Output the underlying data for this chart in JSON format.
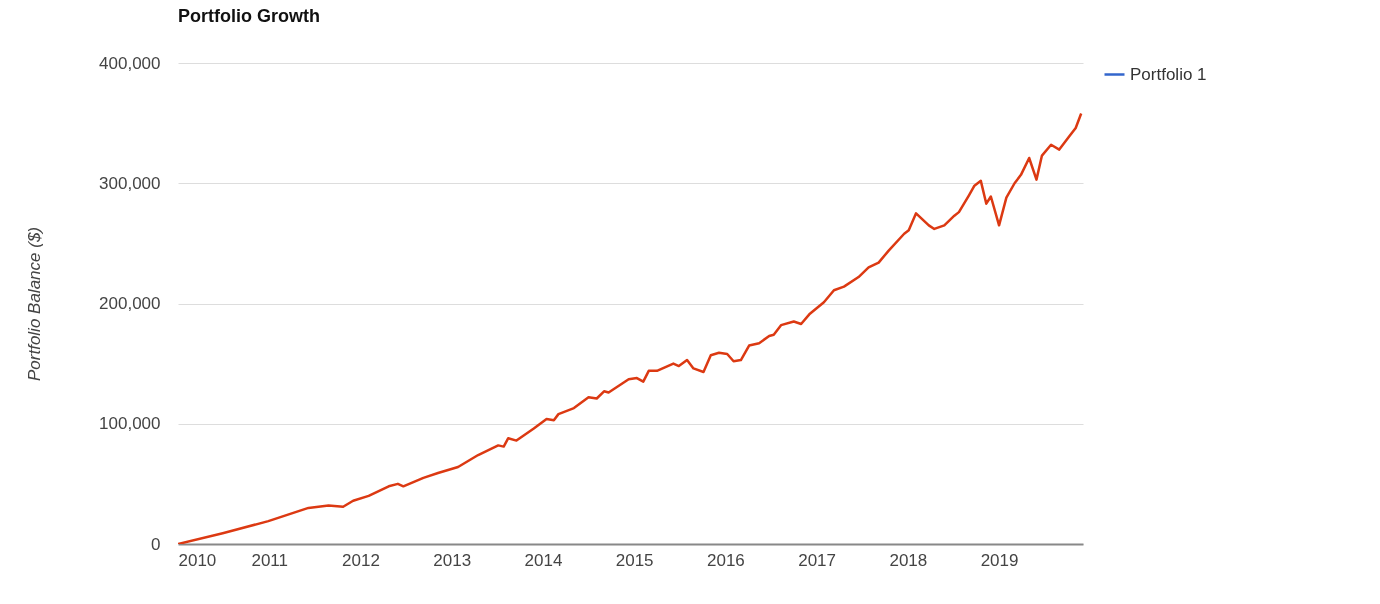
{
  "chart_data": {
    "type": "line",
    "title": "Portfolio Growth",
    "ylabel": "Portfolio Balance ($)",
    "xlim": [
      2010,
      2019.92
    ],
    "xticks": [
      2010,
      2011,
      2012,
      2013,
      2014,
      2015,
      2016,
      2017,
      2018,
      2019
    ],
    "ylim": [
      0,
      400000
    ],
    "yticks": [
      0,
      {
        "value": 100000,
        "label": "100,000"
      },
      {
        "value": 200000,
        "label": "200,000"
      },
      {
        "value": 300000,
        "label": "300,000"
      },
      {
        "value": 400000,
        "label": "400,000"
      }
    ],
    "grid": "y",
    "legend": "top right",
    "x": [
      2010.0,
      2010.49,
      2010.99,
      2011.43,
      2011.65,
      2011.81,
      2011.92,
      2012.09,
      2012.31,
      2012.41,
      2012.47,
      2012.69,
      2012.85,
      2013.07,
      2013.29,
      2013.51,
      2013.57,
      2013.62,
      2013.71,
      2013.9,
      2014.04,
      2014.12,
      2014.17,
      2014.34,
      2014.5,
      2014.59,
      2014.67,
      2014.72,
      2014.94,
      2015.03,
      2015.1,
      2015.16,
      2015.25,
      2015.43,
      2015.49,
      2015.58,
      2015.65,
      2015.76,
      2015.84,
      2015.93,
      2016.02,
      2016.09,
      2016.17,
      2016.26,
      2016.37,
      2016.48,
      2016.53,
      2016.61,
      2016.75,
      2016.83,
      2016.92,
      2017.08,
      2017.19,
      2017.3,
      2017.46,
      2017.57,
      2017.68,
      2017.79,
      2017.96,
      2018.01,
      2018.09,
      2018.23,
      2018.29,
      2018.4,
      2018.51,
      2018.56,
      2018.67,
      2018.73,
      2018.8,
      2018.86,
      2018.91,
      2019.0,
      2019.08,
      2019.17,
      2019.24,
      2019.33,
      2019.41,
      2019.47,
      2019.57,
      2019.66,
      2019.77,
      2019.84,
      2019.9
    ],
    "series": [
      {
        "name": "Portfolio 1",
        "color": "#3366cc",
        "values": [
          null,
          null,
          null,
          null,
          null,
          null,
          null,
          null,
          null,
          null,
          null,
          null,
          null,
          null,
          null,
          null,
          null,
          null,
          null,
          null,
          null,
          null,
          null,
          null,
          null,
          null,
          null,
          null,
          null,
          null,
          null,
          null,
          null,
          null,
          null,
          null,
          null,
          null,
          null,
          null,
          null,
          null,
          null,
          null,
          null,
          null,
          null,
          null,
          null,
          null,
          null,
          null,
          null,
          null,
          null,
          null,
          null,
          null,
          null,
          null,
          null,
          null,
          null,
          null,
          null,
          null,
          null,
          null,
          null,
          null,
          null,
          null,
          null,
          null,
          null,
          null,
          null,
          null,
          null,
          null,
          null,
          null,
          null
        ]
      },
      {
        "color": "#dc3912",
        "values": [
          0,
          9000,
          19000,
          30000,
          32000,
          31000,
          36000,
          40000,
          48000,
          50000,
          48000,
          55000,
          59000,
          64000,
          74000,
          82000,
          81000,
          88000,
          86000,
          96000,
          104000,
          103000,
          108000,
          113000,
          122000,
          121000,
          127000,
          126000,
          137000,
          138000,
          135000,
          144000,
          144000,
          150000,
          148000,
          153000,
          146000,
          143000,
          157000,
          159000,
          158000,
          152000,
          153000,
          165000,
          167000,
          173000,
          174000,
          182000,
          185000,
          183000,
          191000,
          201000,
          211000,
          214000,
          222000,
          230000,
          234000,
          244000,
          258000,
          261000,
          275000,
          265000,
          262000,
          265000,
          273000,
          276000,
          290000,
          298000,
          302000,
          283000,
          289000,
          265000,
          288000,
          300000,
          307000,
          321000,
          303000,
          323000,
          332000,
          328000,
          339000,
          346000,
          358000
        ]
      }
    ]
  }
}
